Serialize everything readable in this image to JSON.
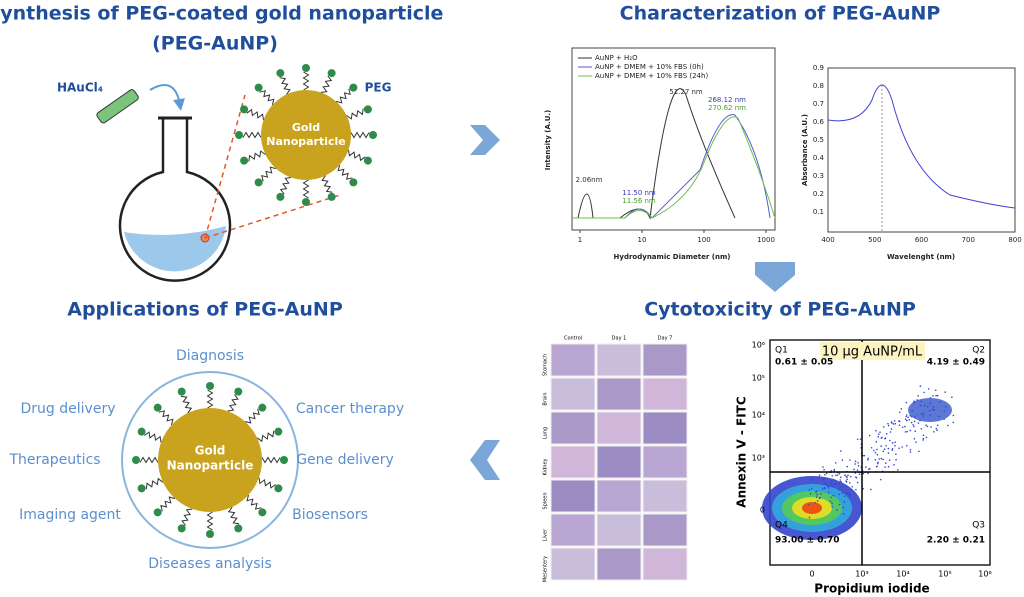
{
  "synthesis": {
    "title": "Synthesis of PEG-coated gold nanoparticle",
    "title_line2": "(PEG-AuNP)",
    "reagent": "HAuCl₄",
    "ligand": "PEG",
    "particle": [
      "Gold",
      "Nanoparticle"
    ]
  },
  "characterization": {
    "title": "Characterization of PEG-AuNP",
    "dls": {
      "legend": [
        "AuNP + H₂O",
        "AuNP + DMEM + 10% FBS (0h)",
        "AuNP + DMEM + 10% FBS (24h)"
      ],
      "peaks": [
        "2.06nm",
        "51.27 nm",
        "11.50 nm",
        "11.56 nm",
        "268.12 nm",
        "270.62 nm"
      ],
      "x_label": "Hydrodynamic Diameter (nm)",
      "y_label": "Intensity (A.U.)",
      "xticks": [
        "1",
        "10",
        "100",
        "1000"
      ]
    },
    "absorbance": {
      "x_label": "Wavelenght (nm)",
      "y_label": "Absorbance (A.U.)",
      "xticks": [
        "400",
        "500",
        "600",
        "700",
        "800"
      ],
      "yticks": [
        "0.1",
        "0.2",
        "0.3",
        "0.4",
        "0.5",
        "0.6",
        "0.7",
        "0.8",
        "0.9"
      ]
    }
  },
  "cytotoxicity": {
    "title": "Cytotoxicity of PEG-AuNP",
    "histology": {
      "columns": [
        "Control",
        "Day 1",
        "Day 7"
      ],
      "rows": [
        "Stomach",
        "Brain",
        "Lung",
        "Kidney",
        "Spleen",
        "Liver",
        "Mesentery"
      ]
    },
    "flow": {
      "condition": "10 μg AuNP/mL",
      "quadrants": [
        {
          "name": "Q1",
          "value": "0.61 ± 0.05"
        },
        {
          "name": "Q2",
          "value": "4.19 ± 0.49"
        },
        {
          "name": "Q3",
          "value": "2.20 ± 0.21"
        },
        {
          "name": "Q4",
          "value": "93.00 ± 0.70"
        }
      ],
      "x_label": "Propidium iodide",
      "y_label": "Annexin V - FITC",
      "xticks": [
        "0",
        "10³",
        "10⁴",
        "10⁵",
        "10⁶"
      ],
      "yticks": [
        "10⁶",
        "10⁵",
        "10⁴",
        "10³",
        "0"
      ]
    }
  },
  "applications": {
    "title": "Applications of PEG-AuNP",
    "particle": [
      "Gold",
      "Nanoparticle"
    ],
    "items": [
      "Diagnosis",
      "Drug delivery",
      "Cancer therapy",
      "Therapeutics",
      "Gene delivery",
      "Imaging agent",
      "Biosensors",
      "Diseases analysis"
    ]
  }
}
